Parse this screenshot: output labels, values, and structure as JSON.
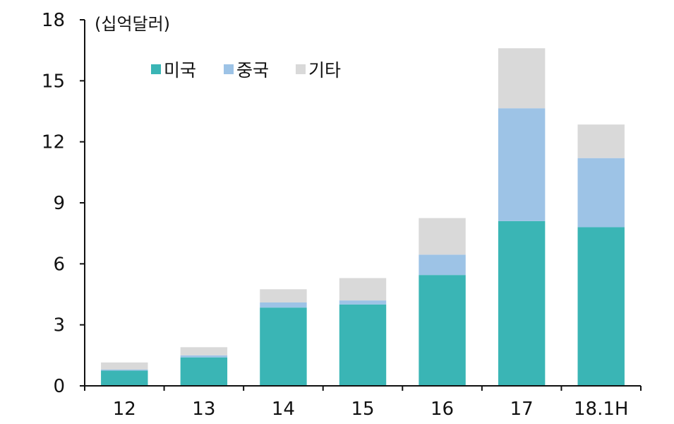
{
  "chart_data": {
    "type": "bar",
    "stacked": true,
    "unit_label": "(십억달러)",
    "categories": [
      "12",
      "13",
      "14",
      "15",
      "16",
      "17",
      "18.1H"
    ],
    "series": [
      {
        "name": "미국",
        "color": "#3AB5B5",
        "values": [
          0.75,
          1.4,
          3.85,
          4.0,
          5.45,
          8.1,
          7.8
        ]
      },
      {
        "name": "중국",
        "color": "#9DC3E6",
        "values": [
          0.05,
          0.1,
          0.25,
          0.2,
          1.0,
          5.55,
          3.4
        ]
      },
      {
        "name": "기타",
        "color": "#D9D9D9",
        "values": [
          0.35,
          0.4,
          0.65,
          1.1,
          1.8,
          2.95,
          1.65
        ]
      }
    ],
    "ylim": [
      0,
      18
    ],
    "yticks": [
      0,
      3,
      6,
      9,
      12,
      15,
      18
    ],
    "legend_position": "top-left",
    "grid": false
  }
}
